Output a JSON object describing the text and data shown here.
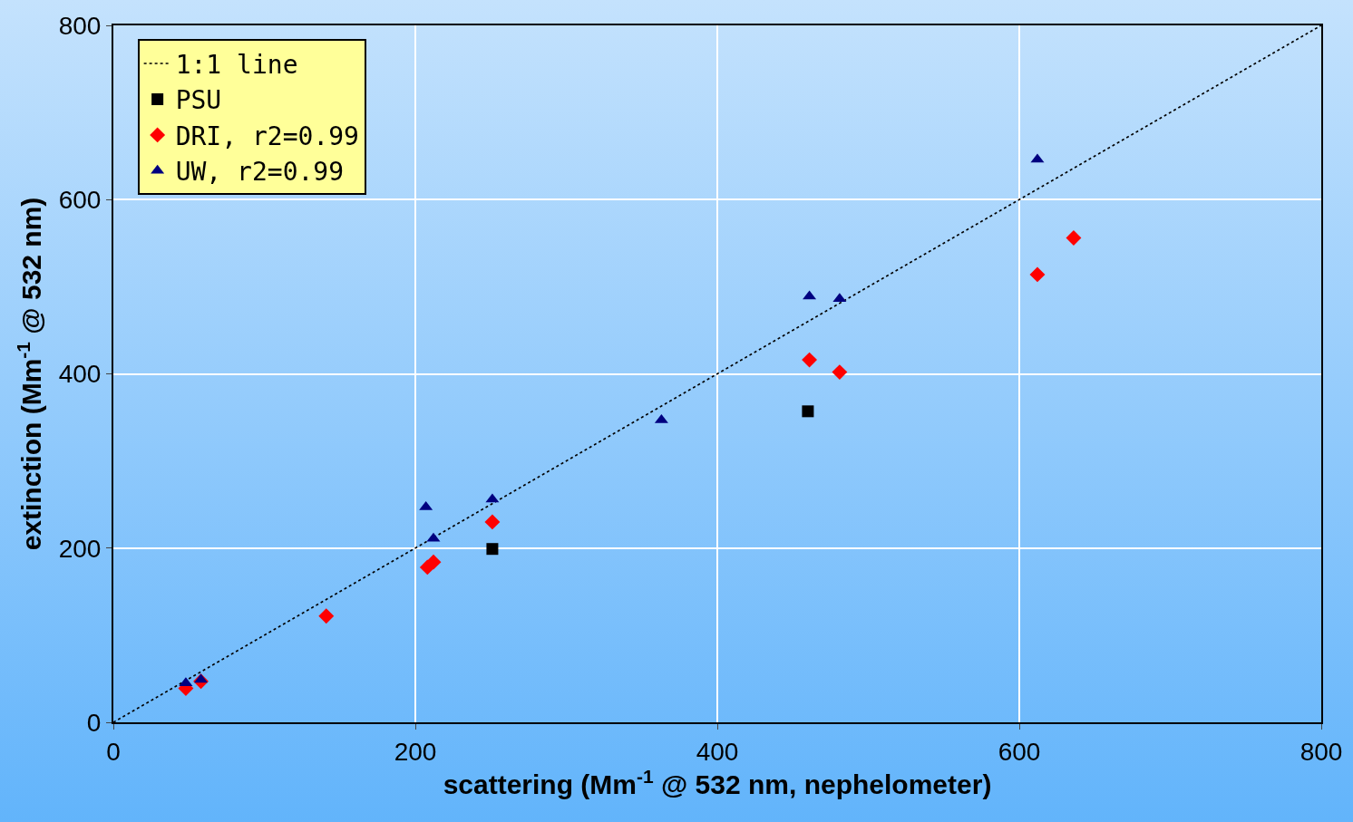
{
  "chart_data": {
    "type": "scatter",
    "xlabel": "scattering (Mm$^{-1}$ @ 532 nm, nephelometer)",
    "ylabel": "extinction (Mm$^{-1}$ @ 532 nm)",
    "xlim": [
      0,
      800
    ],
    "xticks": [
      0,
      200,
      400,
      600,
      800
    ],
    "ylim": [
      0,
      800
    ],
    "yticks": [
      0,
      200,
      400,
      600,
      800
    ],
    "grid": true,
    "legend": "top left",
    "series": [
      {
        "name": "1:1 line",
        "type": "line",
        "color": "#000000",
        "line_style": "dotted",
        "marker": "none",
        "x": [
          0,
          800
        ],
        "values": [
          0,
          800
        ]
      },
      {
        "name": "PSU",
        "color": "#000000",
        "marker": "square",
        "x": [
          251,
          460
        ],
        "values": [
          199,
          357
        ]
      },
      {
        "name": "DRI, r2=0.99",
        "color": "#ff0000",
        "marker": "diamond",
        "x": [
          48,
          58,
          141,
          208,
          212,
          251,
          461,
          481,
          612,
          636
        ],
        "values": [
          39,
          47,
          122,
          178,
          184,
          230,
          416,
          402,
          514,
          556
        ]
      },
      {
        "name": "UW, r2=0.99",
        "color": "#000080",
        "marker": "triangle",
        "x": [
          48,
          58,
          207,
          212,
          251,
          363,
          461,
          481,
          612
        ],
        "values": [
          45,
          49,
          247,
          211,
          256,
          347,
          489,
          486,
          646
        ]
      }
    ]
  }
}
